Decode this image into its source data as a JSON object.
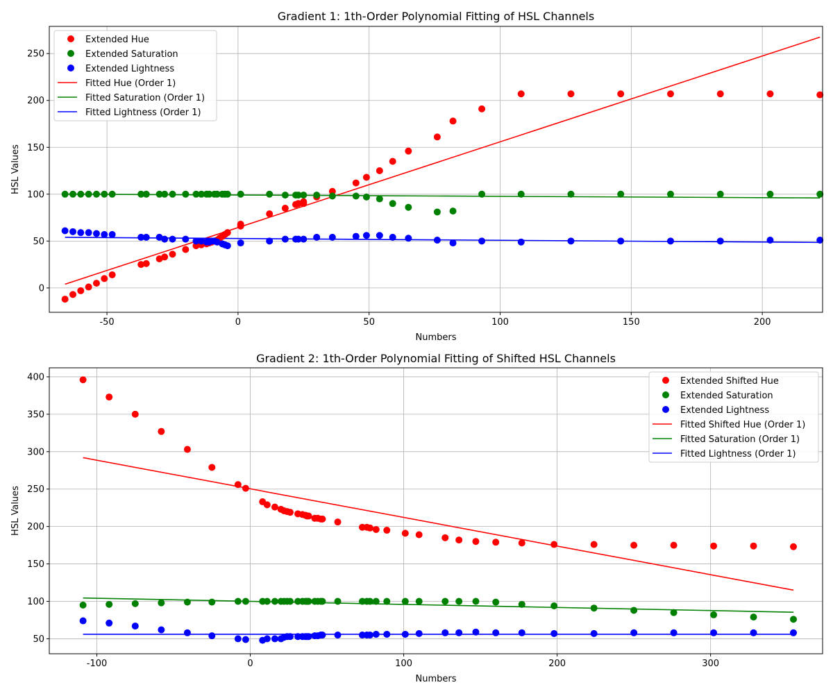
{
  "chart_data": [
    {
      "type": "scatter",
      "title": "Gradient 1: 1th-Order Polynomial Fitting of HSL Channels",
      "xlabel": "Numbers",
      "ylabel": "HSL Values",
      "xlim": [
        -72,
        223
      ],
      "ylim": [
        -26,
        279
      ],
      "xticks": [
        -50,
        0,
        50,
        100,
        150,
        200
      ],
      "yticks": [
        0,
        50,
        100,
        150,
        200,
        250
      ],
      "grid": true,
      "legend_position": "upper-left",
      "legend": [
        {
          "label": "Extended Hue",
          "color": "#ff0000",
          "kind": "marker"
        },
        {
          "label": "Extended Saturation",
          "color": "#008000",
          "kind": "marker"
        },
        {
          "label": "Extended Lightness",
          "color": "#0000ff",
          "kind": "marker"
        },
        {
          "label": "Fitted Hue (Order 1)",
          "color": "#ff0000",
          "kind": "line"
        },
        {
          "label": "Fitted Saturation (Order 1)",
          "color": "#008000",
          "kind": "line"
        },
        {
          "label": "Fitted Lightness (Order 1)",
          "color": "#0000ff",
          "kind": "line"
        }
      ],
      "scatter_series": [
        {
          "color": "#ff0000",
          "x": [
            -66,
            -63,
            -60,
            -57,
            -54,
            -51,
            -48,
            -37,
            -35,
            -30,
            -28,
            -25,
            -20,
            -16,
            -14,
            -12,
            -11,
            -10,
            -9,
            -8,
            -7,
            -6,
            -5,
            -4,
            1,
            1,
            12,
            18,
            22,
            23,
            25,
            25,
            30,
            36,
            45,
            49,
            54,
            59,
            65,
            76,
            82,
            93,
            108,
            127,
            146,
            165,
            184,
            203,
            222
          ],
          "y": [
            -12,
            -7,
            -3,
            1,
            5,
            10,
            14,
            25,
            26,
            31,
            33,
            36,
            41,
            45,
            46,
            47,
            48,
            49,
            50,
            51,
            53,
            55,
            57,
            59,
            66,
            68,
            79,
            85,
            89,
            90,
            90,
            92,
            97,
            103,
            112,
            118,
            125,
            135,
            146,
            161,
            178,
            191,
            207,
            207,
            207,
            207,
            207,
            207,
            206
          ]
        },
        {
          "color": "#008000",
          "x": [
            -66,
            -63,
            -60,
            -57,
            -54,
            -51,
            -48,
            -37,
            -35,
            -30,
            -28,
            -25,
            -20,
            -16,
            -14,
            -12,
            -11,
            -9,
            -8,
            -6,
            -5,
            -4,
            1,
            12,
            18,
            22,
            23,
            25,
            30,
            36,
            45,
            49,
            54,
            59,
            65,
            76,
            82,
            93,
            108,
            127,
            146,
            165,
            184,
            203,
            222
          ],
          "y": [
            100,
            100,
            100,
            100,
            100,
            100,
            100,
            100,
            100,
            100,
            100,
            100,
            100,
            100,
            100,
            100,
            100,
            100,
            100,
            100,
            100,
            100,
            100,
            100,
            99,
            99,
            99,
            99,
            99,
            98,
            98,
            97,
            95,
            90,
            86,
            81,
            82,
            100,
            100,
            100,
            100,
            100,
            100,
            100,
            100
          ]
        },
        {
          "color": "#0000ff",
          "x": [
            -66,
            -63,
            -60,
            -57,
            -54,
            -51,
            -48,
            -37,
            -35,
            -30,
            -28,
            -25,
            -20,
            -16,
            -14,
            -12,
            -11,
            -10,
            -9,
            -8,
            -6,
            -5,
            -4,
            1,
            12,
            18,
            22,
            23,
            25,
            30,
            36,
            45,
            49,
            54,
            59,
            65,
            76,
            82,
            93,
            108,
            127,
            146,
            165,
            184,
            203,
            222
          ],
          "y": [
            61,
            60,
            59,
            59,
            58,
            57,
            57,
            54,
            54,
            54,
            52,
            52,
            52,
            50,
            50,
            49,
            49,
            50,
            50,
            49,
            47,
            46,
            45,
            48,
            50,
            52,
            52,
            52,
            52,
            54,
            54,
            55,
            56,
            56,
            54,
            53,
            51,
            48,
            50,
            49,
            50,
            50,
            50,
            50,
            51,
            51
          ]
        }
      ],
      "fit_lines": [
        {
          "color": "#ff0000",
          "x": [
            -66,
            222
          ],
          "y": [
            4,
            267.5
          ]
        },
        {
          "color": "#008000",
          "x": [
            -66,
            222
          ],
          "y": [
            100,
            96
          ]
        },
        {
          "color": "#0000ff",
          "x": [
            -66,
            222
          ],
          "y": [
            54,
            48.5
          ]
        }
      ]
    },
    {
      "type": "scatter",
      "title": "Gradient 2: 1th-Order Polynomial Fitting of Shifted HSL Channels",
      "xlabel": "Numbers",
      "ylabel": "HSL Values",
      "xlim": [
        -131,
        373
      ],
      "ylim": [
        30,
        412
      ],
      "xticks": [
        -100,
        0,
        100,
        200,
        300
      ],
      "yticks": [
        50,
        100,
        150,
        200,
        250,
        300,
        350,
        400
      ],
      "grid": true,
      "legend_position": "upper-right",
      "legend": [
        {
          "label": "Extended Shifted Hue",
          "color": "#ff0000",
          "kind": "marker"
        },
        {
          "label": "Extended Saturation",
          "color": "#008000",
          "kind": "marker"
        },
        {
          "label": "Extended Lightness",
          "color": "#0000ff",
          "kind": "marker"
        },
        {
          "label": "Fitted Shifted Hue (Order 1)",
          "color": "#ff0000",
          "kind": "line"
        },
        {
          "label": "Fitted Saturation (Order 1)",
          "color": "#008000",
          "kind": "line"
        },
        {
          "label": "Fitted Lightness (Order 1)",
          "color": "#0000ff",
          "kind": "line"
        }
      ],
      "scatter_series": [
        {
          "color": "#ff0000",
          "x": [
            -109,
            -92,
            -75,
            -58,
            -41,
            -25,
            -8,
            -3,
            8,
            11,
            16,
            20,
            22,
            24,
            26,
            31,
            34,
            36,
            37,
            38,
            42,
            44,
            46,
            47,
            57,
            73,
            76,
            78,
            82,
            89,
            101,
            110,
            127,
            136,
            147,
            160,
            177,
            198,
            224,
            250,
            276,
            302,
            328,
            354
          ],
          "y": [
            396,
            373,
            350,
            327,
            303,
            279,
            256,
            251,
            233,
            229,
            226,
            223,
            221,
            220,
            219,
            217,
            216,
            215,
            214,
            214,
            211,
            211,
            210,
            210,
            206,
            199,
            199,
            198,
            196,
            195,
            191,
            189,
            185,
            182,
            180,
            179,
            178,
            176,
            176,
            175,
            175,
            174,
            174,
            173
          ]
        },
        {
          "color": "#008000",
          "x": [
            -109,
            -92,
            -75,
            -58,
            -41,
            -25,
            -8,
            -3,
            8,
            11,
            16,
            20,
            22,
            24,
            26,
            31,
            34,
            36,
            37,
            38,
            42,
            44,
            46,
            47,
            57,
            73,
            76,
            78,
            82,
            89,
            101,
            110,
            127,
            136,
            147,
            160,
            177,
            198,
            224,
            250,
            276,
            302,
            328,
            354
          ],
          "y": [
            95,
            96,
            97,
            98,
            99,
            99,
            100,
            100,
            100,
            100,
            100,
            100,
            100,
            100,
            100,
            100,
            100,
            100,
            100,
            100,
            100,
            100,
            100,
            100,
            100,
            100,
            100,
            100,
            100,
            100,
            100,
            100,
            100,
            100,
            100,
            99,
            96,
            94,
            91,
            88,
            85,
            82,
            79,
            76
          ]
        },
        {
          "color": "#0000ff",
          "x": [
            -109,
            -92,
            -75,
            -58,
            -41,
            -25,
            -8,
            -3,
            8,
            11,
            16,
            20,
            22,
            24,
            26,
            31,
            34,
            36,
            37,
            38,
            42,
            44,
            46,
            47,
            57,
            73,
            76,
            78,
            82,
            89,
            101,
            110,
            127,
            136,
            147,
            160,
            177,
            198,
            224,
            250,
            276,
            302,
            328,
            354
          ],
          "y": [
            74,
            71,
            67,
            62,
            58,
            54,
            50,
            49,
            48,
            50,
            50,
            50,
            52,
            53,
            53,
            53,
            53,
            53,
            53,
            53,
            54,
            54,
            55,
            55,
            55,
            55,
            55,
            55,
            56,
            56,
            56,
            57,
            58,
            58,
            59,
            58,
            58,
            57,
            57,
            58,
            58,
            58,
            58,
            58
          ]
        }
      ],
      "fit_lines": [
        {
          "color": "#ff0000",
          "x": [
            -109,
            354
          ],
          "y": [
            292,
            115
          ]
        },
        {
          "color": "#008000",
          "x": [
            -109,
            354
          ],
          "y": [
            104.5,
            85.5
          ]
        },
        {
          "color": "#0000ff",
          "x": [
            -109,
            354
          ],
          "y": [
            56,
            56
          ]
        }
      ]
    }
  ]
}
